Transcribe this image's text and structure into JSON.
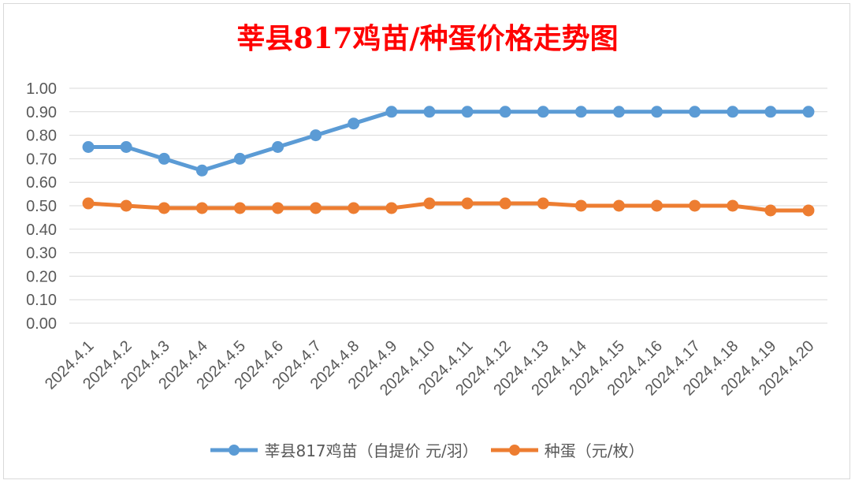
{
  "chart_data": {
    "type": "line",
    "title": "莘县817鸡苗/种蛋价格走势图",
    "categories": [
      "2024.4.1",
      "2024.4.2",
      "2024.4.3",
      "2024.4.4",
      "2024.4.5",
      "2024.4.6",
      "2024.4.7",
      "2024.4.8",
      "2024.4.9",
      "2024.4.10",
      "2024.4.11",
      "2024.4.12",
      "2024.4.13",
      "2024.4.14",
      "2024.4.15",
      "2024.4.16",
      "2024.4.17",
      "2024.4.18",
      "2024.4.19",
      "2024.4.20"
    ],
    "series": [
      {
        "name": "莘县817鸡苗（自提价 元/羽）",
        "color": "#5b9bd5",
        "values": [
          0.75,
          0.75,
          0.7,
          0.65,
          0.7,
          0.75,
          0.8,
          0.85,
          0.9,
          0.9,
          0.9,
          0.9,
          0.9,
          0.9,
          0.9,
          0.9,
          0.9,
          0.9,
          0.9,
          0.9
        ]
      },
      {
        "name": "种蛋（元/枚）",
        "color": "#ed7d31",
        "values": [
          0.51,
          0.5,
          0.49,
          0.49,
          0.49,
          0.49,
          0.49,
          0.49,
          0.49,
          0.51,
          0.51,
          0.51,
          0.51,
          0.5,
          0.5,
          0.5,
          0.5,
          0.5,
          0.48,
          0.48
        ]
      }
    ],
    "yticks": [
      "0.00",
      "0.10",
      "0.20",
      "0.30",
      "0.40",
      "0.50",
      "0.60",
      "0.70",
      "0.80",
      "0.90",
      "1.00"
    ],
    "ylim": [
      0,
      1
    ],
    "grid": true,
    "legend_position": "bottom"
  }
}
